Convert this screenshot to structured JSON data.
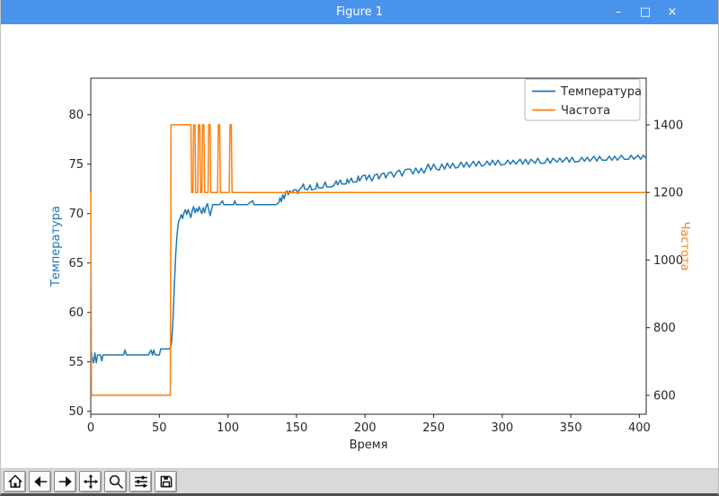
{
  "window": {
    "title": "Figure 1",
    "controls": {
      "minimize": "–",
      "maximize": "□",
      "close": "×"
    }
  },
  "toolbar": {
    "buttons": [
      {
        "name": "home"
      },
      {
        "name": "back"
      },
      {
        "name": "forward"
      },
      {
        "name": "pan"
      },
      {
        "name": "zoom"
      },
      {
        "name": "subplots"
      },
      {
        "name": "save"
      }
    ]
  },
  "colors": {
    "titlebar": "#4a93ec",
    "temperature_blue": "#1f77b4",
    "frequency_orange": "#ff7f0e",
    "toolbar_bg": "#d9d9d9"
  },
  "chart_data": {
    "type": "line",
    "title": "",
    "xlabel": "Время",
    "ylabel_left": "Температура",
    "ylabel_right": "Частота",
    "xlim": [
      0,
      405
    ],
    "ylim_left": [
      49.7,
      83.7
    ],
    "ylim_right": [
      544,
      1538
    ],
    "xticks": [
      0,
      50,
      100,
      150,
      200,
      250,
      300,
      350,
      400
    ],
    "yticks_left": [
      50,
      55,
      60,
      65,
      70,
      75,
      80
    ],
    "yticks_right": [
      600,
      800,
      1000,
      1200,
      1400
    ],
    "grid": false,
    "legend": {
      "position": "upper right",
      "entries": [
        {
          "label": "Температура",
          "color": "#1f77b4"
        },
        {
          "label": "Частота",
          "color": "#ff7f0e"
        }
      ]
    },
    "series": [
      {
        "name": "temperature",
        "axis": "left",
        "color": "#1f77b4",
        "points": [
          [
            0,
            56.6
          ],
          [
            1,
            55.4
          ],
          [
            2,
            54.9
          ],
          [
            3,
            55.9
          ],
          [
            4,
            54.9
          ],
          [
            5,
            55.7
          ],
          [
            7,
            55.7
          ],
          [
            8,
            55.1
          ],
          [
            9,
            55.7
          ],
          [
            12,
            55.7
          ],
          [
            15,
            55.7
          ],
          [
            18,
            55.7
          ],
          [
            21,
            55.7
          ],
          [
            24,
            55.7
          ],
          [
            25,
            56.2
          ],
          [
            26,
            55.7
          ],
          [
            30,
            55.7
          ],
          [
            34,
            55.7
          ],
          [
            38,
            55.7
          ],
          [
            42,
            55.7
          ],
          [
            44,
            56.2
          ],
          [
            45,
            55.7
          ],
          [
            46,
            56.2
          ],
          [
            47,
            55.7
          ],
          [
            50,
            55.7
          ],
          [
            51,
            56.3
          ],
          [
            54,
            56.3
          ],
          [
            57,
            56.3
          ],
          [
            58,
            56.4
          ],
          [
            59,
            57.0
          ],
          [
            60,
            59.5
          ],
          [
            61,
            63.0
          ],
          [
            62,
            66.0
          ],
          [
            63,
            68.0
          ],
          [
            64,
            69.2
          ],
          [
            65,
            69.5
          ],
          [
            66,
            69.9
          ],
          [
            67,
            69.5
          ],
          [
            68,
            70.1
          ],
          [
            69,
            70.4
          ],
          [
            70,
            69.9
          ],
          [
            71,
            70.4
          ],
          [
            72,
            70.0
          ],
          [
            73,
            69.6
          ],
          [
            74,
            70.3
          ],
          [
            75,
            70.7
          ],
          [
            76,
            70.1
          ],
          [
            77,
            70.5
          ],
          [
            78,
            70.2
          ],
          [
            79,
            70.7
          ],
          [
            80,
            70.3
          ],
          [
            81,
            70.0
          ],
          [
            82,
            70.6
          ],
          [
            83,
            70.1
          ],
          [
            84,
            70.7
          ],
          [
            85,
            71.0
          ],
          [
            86,
            70.4
          ],
          [
            87,
            69.8
          ],
          [
            88,
            70.4
          ],
          [
            89,
            70.9
          ],
          [
            91,
            70.9
          ],
          [
            94,
            70.9
          ],
          [
            96,
            71.3
          ],
          [
            97,
            70.9
          ],
          [
            100,
            70.9
          ],
          [
            104,
            70.9
          ],
          [
            105,
            71.3
          ],
          [
            106,
            70.9
          ],
          [
            110,
            70.9
          ],
          [
            114,
            70.9
          ],
          [
            118,
            71.3
          ],
          [
            119,
            70.9
          ],
          [
            123,
            70.9
          ],
          [
            127,
            70.9
          ],
          [
            131,
            70.9
          ],
          [
            135,
            70.9
          ],
          [
            137,
            71.1
          ],
          [
            138,
            71.6
          ],
          [
            139,
            71.2
          ],
          [
            140,
            71.9
          ],
          [
            141,
            71.5
          ],
          [
            142,
            72.1
          ],
          [
            143,
            72.3
          ],
          [
            144,
            71.9
          ],
          [
            145,
            72.3
          ],
          [
            147,
            72.1
          ],
          [
            148,
            72.4
          ],
          [
            150,
            72.4
          ],
          [
            151,
            72.0
          ],
          [
            152,
            72.4
          ],
          [
            154,
            72.7
          ],
          [
            155,
            73.0
          ],
          [
            156,
            72.5
          ],
          [
            158,
            72.4
          ],
          [
            160,
            72.9
          ],
          [
            161,
            72.4
          ],
          [
            164,
            72.5
          ],
          [
            165,
            73.1
          ],
          [
            166,
            72.6
          ],
          [
            169,
            72.6
          ],
          [
            171,
            73.2
          ],
          [
            172,
            72.7
          ],
          [
            175,
            72.7
          ],
          [
            177,
            72.8
          ],
          [
            179,
            73.3
          ],
          [
            180,
            72.9
          ],
          [
            182,
            73.4
          ],
          [
            183,
            73.0
          ],
          [
            186,
            73.0
          ],
          [
            187,
            73.5
          ],
          [
            188,
            73.1
          ],
          [
            190,
            73.6
          ],
          [
            191,
            73.2
          ],
          [
            194,
            73.2
          ],
          [
            195,
            73.8
          ],
          [
            196,
            73.3
          ],
          [
            198,
            73.8
          ],
          [
            200,
            73.9
          ],
          [
            201,
            73.4
          ],
          [
            203,
            73.9
          ],
          [
            205,
            73.3
          ],
          [
            207,
            73.9
          ],
          [
            209,
            74.0
          ],
          [
            210,
            73.5
          ],
          [
            212,
            74.0
          ],
          [
            214,
            74.1
          ],
          [
            215,
            73.6
          ],
          [
            217,
            74.1
          ],
          [
            219,
            74.2
          ],
          [
            221,
            73.7
          ],
          [
            223,
            74.2
          ],
          [
            225,
            74.4
          ],
          [
            227,
            73.8
          ],
          [
            229,
            74.4
          ],
          [
            231,
            74.5
          ],
          [
            233,
            74.5
          ],
          [
            235,
            74.0
          ],
          [
            237,
            74.6
          ],
          [
            239,
            74.1
          ],
          [
            241,
            74.6
          ],
          [
            243,
            74.1
          ],
          [
            245,
            74.7
          ],
          [
            246,
            75.0
          ],
          [
            248,
            74.4
          ],
          [
            250,
            75.0
          ],
          [
            252,
            74.5
          ],
          [
            254,
            74.4
          ],
          [
            256,
            75.0
          ],
          [
            258,
            74.5
          ],
          [
            260,
            75.1
          ],
          [
            262,
            74.6
          ],
          [
            264,
            75.1
          ],
          [
            266,
            74.6
          ],
          [
            268,
            74.7
          ],
          [
            270,
            75.2
          ],
          [
            272,
            74.7
          ],
          [
            274,
            75.2
          ],
          [
            276,
            74.7
          ],
          [
            279,
            75.3
          ],
          [
            281,
            74.8
          ],
          [
            283,
            75.3
          ],
          [
            285,
            74.8
          ],
          [
            287,
            74.9
          ],
          [
            289,
            75.3
          ],
          [
            291,
            74.9
          ],
          [
            293,
            75.4
          ],
          [
            295,
            74.9
          ],
          [
            297,
            75.4
          ],
          [
            299,
            74.9
          ],
          [
            302,
            75.0
          ],
          [
            304,
            75.4
          ],
          [
            306,
            75.0
          ],
          [
            308,
            75.4
          ],
          [
            310,
            75.0
          ],
          [
            313,
            75.5
          ],
          [
            315,
            75.0
          ],
          [
            317,
            75.5
          ],
          [
            319,
            75.0
          ],
          [
            321,
            75.5
          ],
          [
            324,
            75.1
          ],
          [
            326,
            75.6
          ],
          [
            328,
            75.1
          ],
          [
            331,
            75.1
          ],
          [
            333,
            75.6
          ],
          [
            335,
            75.1
          ],
          [
            337,
            75.6
          ],
          [
            340,
            75.2
          ],
          [
            342,
            75.6
          ],
          [
            344,
            75.2
          ],
          [
            347,
            75.7
          ],
          [
            349,
            75.2
          ],
          [
            351,
            75.7
          ],
          [
            353,
            75.2
          ],
          [
            356,
            75.3
          ],
          [
            358,
            75.7
          ],
          [
            360,
            75.3
          ],
          [
            362,
            75.7
          ],
          [
            364,
            75.3
          ],
          [
            367,
            75.8
          ],
          [
            369,
            75.3
          ],
          [
            371,
            75.8
          ],
          [
            373,
            75.4
          ],
          [
            376,
            75.4
          ],
          [
            378,
            75.8
          ],
          [
            380,
            75.4
          ],
          [
            382,
            75.8
          ],
          [
            384,
            75.4
          ],
          [
            387,
            75.9
          ],
          [
            389,
            75.5
          ],
          [
            392,
            75.5
          ],
          [
            394,
            75.9
          ],
          [
            396,
            75.5
          ],
          [
            399,
            75.9
          ],
          [
            401,
            75.5
          ],
          [
            403,
            75.9
          ],
          [
            405,
            75.6
          ]
        ]
      },
      {
        "name": "frequency",
        "axis": "right",
        "color": "#ff7f0e",
        "points": [
          [
            0,
            1200
          ],
          [
            0.5,
            600
          ],
          [
            58,
            600
          ],
          [
            58.5,
            1400
          ],
          [
            73,
            1400
          ],
          [
            73.5,
            1200
          ],
          [
            74.5,
            1200
          ],
          [
            75,
            1400
          ],
          [
            76,
            1400
          ],
          [
            76.5,
            1200
          ],
          [
            78,
            1200
          ],
          [
            78.5,
            1400
          ],
          [
            79.5,
            1400
          ],
          [
            80,
            1200
          ],
          [
            81,
            1200
          ],
          [
            81.5,
            1400
          ],
          [
            82.5,
            1400
          ],
          [
            83,
            1200
          ],
          [
            85.5,
            1200
          ],
          [
            86,
            1400
          ],
          [
            87,
            1400
          ],
          [
            87.5,
            1200
          ],
          [
            92.5,
            1200
          ],
          [
            93,
            1400
          ],
          [
            94,
            1400
          ],
          [
            94.5,
            1200
          ],
          [
            101,
            1200
          ],
          [
            101.5,
            1400
          ],
          [
            102.5,
            1400
          ],
          [
            103,
            1200
          ],
          [
            405,
            1200
          ]
        ]
      }
    ]
  }
}
